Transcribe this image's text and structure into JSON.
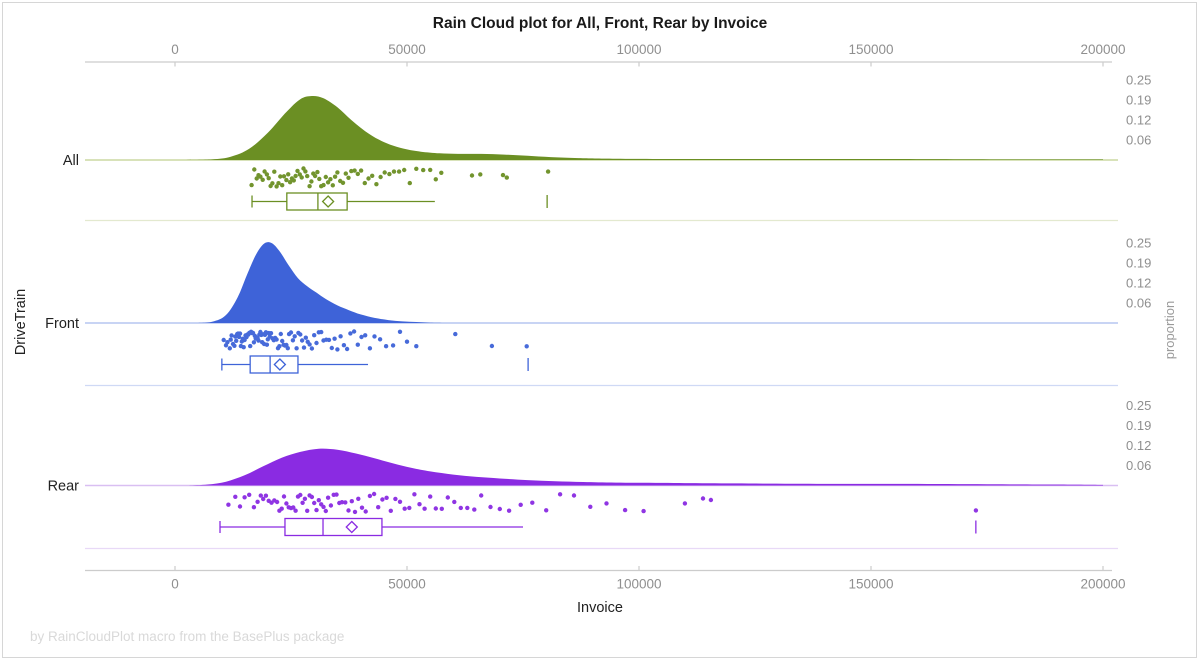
{
  "colors": {
    "axis_line": "#cccccc",
    "tick_text": "#8f8f8f",
    "label_text": "#222222",
    "frame": "#d6d6d6",
    "footer_text": "#d9d9d9",
    "background": "#ffffff"
  },
  "footer_note": "by RainCloudPlot macro from the BasePlus package",
  "chart_data": {
    "type": "raincloud (half-violin + jittered points + box plot)",
    "title": "Rain Cloud plot for All, Front, Rear by Invoice",
    "xlabel": "Invoice",
    "ylabel_left": "DriveTrain",
    "ylabel_right": "proportion",
    "x_axis": {
      "tick_values": [
        0,
        50000,
        100000,
        150000,
        200000
      ],
      "tick_labels": [
        "0",
        "50000",
        "100000",
        "150000",
        "200000"
      ],
      "xlim": [
        -19500,
        202000
      ],
      "shown_top_and_bottom": true
    },
    "proportion_ticks": [
      {
        "label": "0.25",
        "value": 0.25
      },
      {
        "label": "0.19",
        "value": 0.1875
      },
      {
        "label": "0.12",
        "value": 0.125
      },
      {
        "label": "0.06",
        "value": 0.0625
      }
    ],
    "panels": [
      {
        "label": "All",
        "color": "#6b8f23",
        "baseline_color": "#ccd8a2",
        "separator_color": "#e3e9cf",
        "density": [
          [
            2000,
            0
          ],
          [
            8000,
            0.002
          ],
          [
            12000,
            0.01
          ],
          [
            16000,
            0.035
          ],
          [
            20000,
            0.085
          ],
          [
            24000,
            0.15
          ],
          [
            27000,
            0.19
          ],
          [
            29500,
            0.2
          ],
          [
            32000,
            0.193
          ],
          [
            35000,
            0.165
          ],
          [
            38000,
            0.125
          ],
          [
            41000,
            0.09
          ],
          [
            44000,
            0.063
          ],
          [
            47000,
            0.045
          ],
          [
            50000,
            0.033
          ],
          [
            53000,
            0.026
          ],
          [
            57000,
            0.021
          ],
          [
            61000,
            0.019
          ],
          [
            66000,
            0.019
          ],
          [
            71000,
            0.017
          ],
          [
            76000,
            0.013
          ],
          [
            81000,
            0.009
          ],
          [
            87000,
            0.006
          ],
          [
            95000,
            0.004
          ],
          [
            110000,
            0.003
          ],
          [
            130000,
            0.003
          ],
          [
            155000,
            0.003
          ],
          [
            180000,
            0.002
          ],
          [
            200000,
            0.002
          ]
        ],
        "rain": [
          16500,
          17100,
          17600,
          18000,
          18400,
          18900,
          19300,
          19800,
          20200,
          20600,
          21000,
          21400,
          21900,
          22300,
          22700,
          23100,
          23500,
          24000,
          24400,
          24800,
          25200,
          25600,
          26000,
          26400,
          26900,
          27300,
          27700,
          28100,
          28500,
          29000,
          29400,
          29800,
          30200,
          30700,
          31100,
          31500,
          32000,
          32500,
          33000,
          33500,
          34000,
          34500,
          35000,
          35600,
          36200,
          36800,
          37400,
          38000,
          38700,
          39400,
          40100,
          40900,
          41700,
          42500,
          43400,
          44300,
          45200,
          46200,
          47200,
          48300,
          49400,
          50600,
          52000,
          53500,
          55000,
          56200,
          57400,
          64000,
          65800,
          70700,
          71500,
          80400
        ],
        "box": {
          "whisker_low": 16600,
          "q1": 24100,
          "median": 30800,
          "q3": 37100,
          "whisker_high": 56000,
          "mean": 33000,
          "outliers": [
            80200
          ]
        }
      },
      {
        "label": "Front",
        "color": "#3e63d8",
        "baseline_color": "#b5c5f0",
        "separator_color": "#cfd9f5",
        "density": [
          [
            4000,
            0
          ],
          [
            8000,
            0.004
          ],
          [
            11000,
            0.025
          ],
          [
            13500,
            0.08
          ],
          [
            15500,
            0.15
          ],
          [
            17500,
            0.215
          ],
          [
            19200,
            0.248
          ],
          [
            20800,
            0.25
          ],
          [
            22500,
            0.225
          ],
          [
            24500,
            0.18
          ],
          [
            26500,
            0.14
          ],
          [
            28500,
            0.115
          ],
          [
            30500,
            0.095
          ],
          [
            32500,
            0.075
          ],
          [
            35000,
            0.055
          ],
          [
            37500,
            0.04
          ],
          [
            40000,
            0.027
          ],
          [
            43000,
            0.016
          ],
          [
            46000,
            0.009
          ],
          [
            49000,
            0.005
          ],
          [
            52000,
            0.003
          ],
          [
            55000,
            0.001
          ],
          [
            58000,
            0
          ]
        ],
        "rain": [
          10500,
          11000,
          11300,
          11800,
          12000,
          12200,
          12500,
          12800,
          13000,
          13200,
          13400,
          13600,
          13800,
          14000,
          14200,
          14400,
          14600,
          14800,
          15000,
          15200,
          15400,
          15600,
          15800,
          16000,
          16200,
          16400,
          16600,
          16800,
          17000,
          17200,
          17400,
          17600,
          17800,
          18000,
          18200,
          18400,
          18600,
          18800,
          19000,
          19200,
          19400,
          19600,
          19800,
          20000,
          20200,
          20400,
          20700,
          21000,
          21300,
          21600,
          21900,
          22200,
          22500,
          22800,
          23100,
          23400,
          23700,
          24000,
          24300,
          24600,
          25000,
          25400,
          25800,
          26200,
          26600,
          27000,
          27400,
          27800,
          28200,
          28600,
          29000,
          29500,
          30000,
          30500,
          31000,
          31500,
          32000,
          32600,
          33200,
          33800,
          34400,
          35000,
          35700,
          36400,
          37100,
          37800,
          38600,
          39400,
          40200,
          41000,
          42000,
          43000,
          44200,
          45500,
          47000,
          48500,
          50000,
          52000,
          60400,
          68300,
          75800
        ],
        "box": {
          "whisker_low": 10100,
          "q1": 16200,
          "median": 20500,
          "q3": 26500,
          "whisker_high": 41600,
          "mean": 22600,
          "outliers": [
            76100
          ]
        }
      },
      {
        "label": "Rear",
        "color": "#8a2be2",
        "baseline_color": "#d9bff2",
        "separator_color": "#e8d9f7",
        "density": [
          [
            3000,
            0
          ],
          [
            7000,
            0.003
          ],
          [
            11000,
            0.012
          ],
          [
            15000,
            0.032
          ],
          [
            19000,
            0.06
          ],
          [
            23000,
            0.087
          ],
          [
            27000,
            0.105
          ],
          [
            31000,
            0.115
          ],
          [
            35000,
            0.112
          ],
          [
            39000,
            0.1
          ],
          [
            43000,
            0.085
          ],
          [
            47000,
            0.069
          ],
          [
            51000,
            0.055
          ],
          [
            55000,
            0.044
          ],
          [
            60000,
            0.034
          ],
          [
            65000,
            0.027
          ],
          [
            70000,
            0.022
          ],
          [
            76000,
            0.017
          ],
          [
            82000,
            0.013
          ],
          [
            88000,
            0.011
          ],
          [
            95000,
            0.009
          ],
          [
            105000,
            0.008
          ],
          [
            115000,
            0.007
          ],
          [
            128000,
            0.006
          ],
          [
            142000,
            0.005
          ],
          [
            158000,
            0.005
          ],
          [
            175000,
            0.004
          ],
          [
            190000,
            0.003
          ],
          [
            200000,
            0.002
          ]
        ],
        "rain": [
          11500,
          13000,
          14000,
          15000,
          16000,
          17000,
          17800,
          18500,
          19000,
          19600,
          20200,
          20800,
          21400,
          22000,
          22500,
          23000,
          23500,
          24000,
          24500,
          25000,
          25500,
          26000,
          26500,
          27000,
          27500,
          28000,
          28500,
          29000,
          29500,
          30000,
          30500,
          31000,
          31500,
          32000,
          32500,
          33000,
          33600,
          34200,
          34800,
          35400,
          36000,
          36700,
          37400,
          38100,
          38800,
          39500,
          40300,
          41100,
          42000,
          42900,
          43800,
          44700,
          45600,
          46500,
          47500,
          48500,
          49500,
          50500,
          51600,
          52700,
          53800,
          55000,
          56200,
          57500,
          58800,
          60200,
          61600,
          63000,
          64500,
          66000,
          68000,
          70000,
          72000,
          74500,
          77000,
          80000,
          83000,
          86000,
          89500,
          93000,
          97000,
          101000,
          109900,
          113800,
          115500,
          172600
        ],
        "box": {
          "whisker_low": 9700,
          "q1": 23700,
          "median": 31900,
          "q3": 44600,
          "whisker_high": 75000,
          "mean": 38100,
          "outliers": [
            172600
          ]
        }
      }
    ]
  }
}
